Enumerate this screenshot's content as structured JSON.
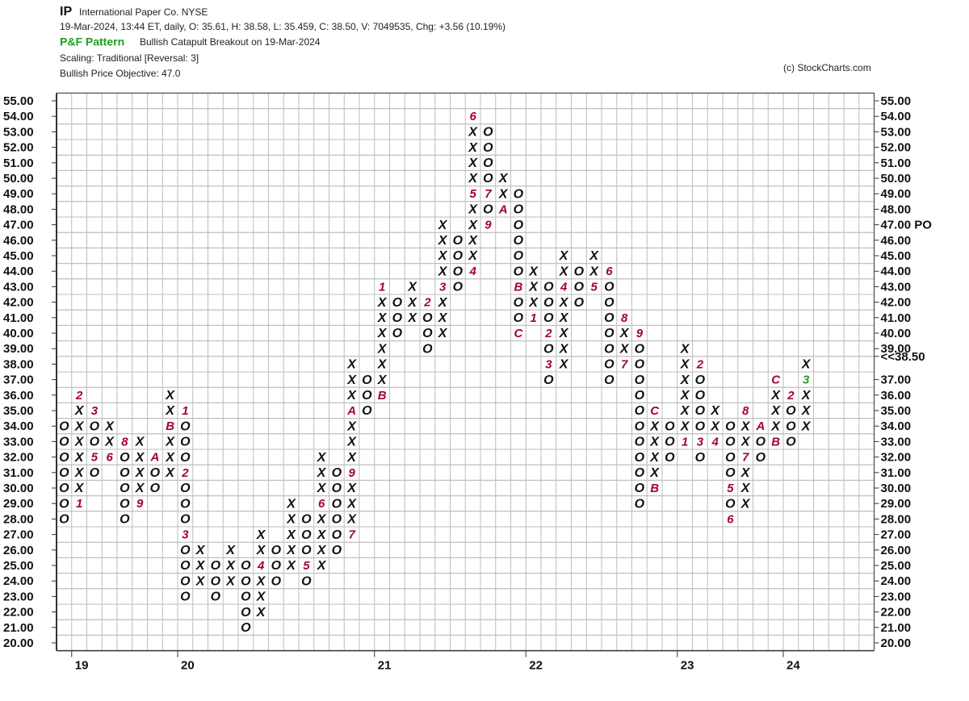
{
  "header": {
    "symbol": "IP",
    "name": "International Paper Co.  NYSE",
    "quote": "19-Mar-2024, 13:44 ET, daily, O: 35.61, H: 38.58, L: 35.459, C: 38.50, V: 7049535, Chg: +3.56 (10.19%)",
    "pattern_label": "P&F Pattern",
    "pattern": "Bullish Catapult Breakout on 19-Mar-2024",
    "scaling": "Scaling: Traditional [Reversal: 3]",
    "objective": "Bullish Price Objective: 47.0",
    "copyright": "(c) StockCharts.com"
  },
  "chart_data": {
    "type": "pnf",
    "ylim": [
      20,
      55
    ],
    "y2lim": [
      20,
      55
    ],
    "grid": true,
    "box_color": "#111111",
    "month_color": "#a3003c",
    "pattern_color": "#1f9f1f",
    "yticks": [
      {
        "value": 55,
        "label": "55.00"
      },
      {
        "value": 54,
        "label": "54.00"
      },
      {
        "value": 53,
        "label": "53.00"
      },
      {
        "value": 52,
        "label": "52.00"
      },
      {
        "value": 51,
        "label": "51.00"
      },
      {
        "value": 50,
        "label": "50.00"
      },
      {
        "value": 49,
        "label": "49.00"
      },
      {
        "value": 48,
        "label": "48.00"
      },
      {
        "value": 47,
        "label": "47.00",
        "color": "#1f9f1f"
      },
      {
        "value": 46,
        "label": "46.00"
      },
      {
        "value": 45,
        "label": "45.00"
      },
      {
        "value": 44,
        "label": "44.00"
      },
      {
        "value": 43,
        "label": "43.00"
      },
      {
        "value": 42,
        "label": "42.00"
      },
      {
        "value": 41,
        "label": "41.00"
      },
      {
        "value": 40,
        "label": "40.00"
      },
      {
        "value": 39,
        "label": "39.00"
      },
      {
        "value": 38,
        "label": "38.00",
        "color": "#c8002d"
      },
      {
        "value": 37,
        "label": "37.00"
      },
      {
        "value": 36,
        "label": "36.00"
      },
      {
        "value": 35,
        "label": "35.00"
      },
      {
        "value": 34,
        "label": "34.00"
      },
      {
        "value": 33,
        "label": "33.00"
      },
      {
        "value": 32,
        "label": "32.00"
      },
      {
        "value": 31,
        "label": "31.00"
      },
      {
        "value": 30,
        "label": "30.00"
      },
      {
        "value": 29,
        "label": "29.00"
      },
      {
        "value": 28,
        "label": "28.00"
      },
      {
        "value": 27,
        "label": "27.00"
      },
      {
        "value": 26,
        "label": "26.00"
      },
      {
        "value": 25,
        "label": "25.00"
      },
      {
        "value": 24,
        "label": "24.00"
      },
      {
        "value": 23,
        "label": "23.00"
      },
      {
        "value": 22,
        "label": "22.00"
      },
      {
        "value": 21,
        "label": "21.00"
      },
      {
        "value": 20,
        "label": "20.00"
      }
    ],
    "y2ticks": [
      {
        "value": 55,
        "label": "55.00"
      },
      {
        "value": 54,
        "label": "54.00"
      },
      {
        "value": 53,
        "label": "53.00"
      },
      {
        "value": 52,
        "label": "52.00"
      },
      {
        "value": 51,
        "label": "51.00"
      },
      {
        "value": 50,
        "label": "50.00"
      },
      {
        "value": 49,
        "label": "49.00"
      },
      {
        "value": 48,
        "label": "48.00"
      },
      {
        "value": 47,
        "label": "47.00 PO",
        "color": "#1f9f1f"
      },
      {
        "value": 46,
        "label": "46.00"
      },
      {
        "value": 45,
        "label": "45.00"
      },
      {
        "value": 44,
        "label": "44.00"
      },
      {
        "value": 43,
        "label": "43.00"
      },
      {
        "value": 42,
        "label": "42.00"
      },
      {
        "value": 41,
        "label": "41.00"
      },
      {
        "value": 40,
        "label": "40.00"
      },
      {
        "value": 39,
        "label": "39.00"
      },
      {
        "value": 38.5,
        "label": "<<38.50",
        "color": "#c8002d"
      },
      {
        "value": 37,
        "label": "37.00"
      },
      {
        "value": 36,
        "label": "36.00"
      },
      {
        "value": 35,
        "label": "35.00"
      },
      {
        "value": 34,
        "label": "34.00"
      },
      {
        "value": 33,
        "label": "33.00"
      },
      {
        "value": 32,
        "label": "32.00"
      },
      {
        "value": 31,
        "label": "31.00"
      },
      {
        "value": 30,
        "label": "30.00"
      },
      {
        "value": 29,
        "label": "29.00"
      },
      {
        "value": 28,
        "label": "28.00"
      },
      {
        "value": 27,
        "label": "27.00"
      },
      {
        "value": 26,
        "label": "26.00"
      },
      {
        "value": 25,
        "label": "25.00"
      },
      {
        "value": 24,
        "label": "24.00"
      },
      {
        "value": 23,
        "label": "23.00"
      },
      {
        "value": 22,
        "label": "22.00"
      },
      {
        "value": 21,
        "label": "21.00"
      },
      {
        "value": 20,
        "label": "20.00"
      }
    ],
    "categories": [
      null,
      "19",
      null,
      null,
      null,
      null,
      null,
      null,
      "20",
      null,
      null,
      null,
      null,
      null,
      null,
      null,
      null,
      null,
      null,
      null,
      null,
      "21",
      null,
      null,
      null,
      null,
      null,
      null,
      null,
      null,
      null,
      "22",
      null,
      null,
      null,
      null,
      null,
      null,
      null,
      null,
      null,
      "23",
      null,
      null,
      null,
      null,
      null,
      null,
      "24",
      null
    ],
    "columns": [
      {
        "type": "O",
        "low": 28,
        "high": 34,
        "months": []
      },
      {
        "type": "X",
        "low": 29,
        "high": 36,
        "months": [
          {
            "box": 29,
            "label": "1"
          },
          {
            "box": 36,
            "label": "2"
          }
        ]
      },
      {
        "type": "O",
        "low": 31,
        "high": 35,
        "months": [
          {
            "box": 35,
            "label": "3"
          },
          {
            "box": 32,
            "label": "5"
          }
        ]
      },
      {
        "type": "X",
        "low": 32,
        "high": 34,
        "months": [
          {
            "box": 32,
            "label": "6"
          }
        ]
      },
      {
        "type": "O",
        "low": 28,
        "high": 33,
        "months": [
          {
            "box": 33,
            "label": "8"
          }
        ]
      },
      {
        "type": "X",
        "low": 29,
        "high": 33,
        "months": [
          {
            "box": 29,
            "label": "9"
          }
        ]
      },
      {
        "type": "O",
        "low": 30,
        "high": 32,
        "months": [
          {
            "box": 32,
            "label": "A"
          }
        ]
      },
      {
        "type": "X",
        "low": 31,
        "high": 36,
        "months": [
          {
            "box": 34,
            "label": "B"
          }
        ]
      },
      {
        "type": "O",
        "low": 23,
        "high": 35,
        "months": [
          {
            "box": 35,
            "label": "1"
          },
          {
            "box": 31,
            "label": "2"
          },
          {
            "box": 27,
            "label": "3"
          }
        ]
      },
      {
        "type": "X",
        "low": 24,
        "high": 26,
        "months": []
      },
      {
        "type": "O",
        "low": 23,
        "high": 25,
        "months": []
      },
      {
        "type": "X",
        "low": 24,
        "high": 26,
        "months": []
      },
      {
        "type": "O",
        "low": 21,
        "high": 25,
        "months": []
      },
      {
        "type": "X",
        "low": 22,
        "high": 27,
        "months": [
          {
            "box": 25,
            "label": "4"
          }
        ]
      },
      {
        "type": "O",
        "low": 24,
        "high": 26,
        "months": []
      },
      {
        "type": "X",
        "low": 25,
        "high": 29,
        "months": []
      },
      {
        "type": "O",
        "low": 24,
        "high": 28,
        "months": [
          {
            "box": 25,
            "label": "5"
          }
        ]
      },
      {
        "type": "X",
        "low": 25,
        "high": 32,
        "months": [
          {
            "box": 29,
            "label": "6"
          }
        ]
      },
      {
        "type": "O",
        "low": 26,
        "high": 31,
        "months": []
      },
      {
        "type": "X",
        "low": 27,
        "high": 38,
        "months": [
          {
            "box": 27,
            "label": "7"
          },
          {
            "box": 31,
            "label": "9"
          },
          {
            "box": 35,
            "label": "A"
          }
        ]
      },
      {
        "type": "O",
        "low": 35,
        "high": 37,
        "months": []
      },
      {
        "type": "X",
        "low": 36,
        "high": 43,
        "months": [
          {
            "box": 36,
            "label": "B"
          },
          {
            "box": 43,
            "label": "1"
          }
        ]
      },
      {
        "type": "O",
        "low": 40,
        "high": 42,
        "months": []
      },
      {
        "type": "X",
        "low": 41,
        "high": 43,
        "months": []
      },
      {
        "type": "O",
        "low": 39,
        "high": 42,
        "months": [
          {
            "box": 42,
            "label": "2"
          }
        ]
      },
      {
        "type": "X",
        "low": 40,
        "high": 47,
        "months": [
          {
            "box": 43,
            "label": "3"
          }
        ]
      },
      {
        "type": "O",
        "low": 43,
        "high": 46,
        "months": []
      },
      {
        "type": "X",
        "low": 44,
        "high": 54,
        "months": [
          {
            "box": 44,
            "label": "4"
          },
          {
            "box": 49,
            "label": "5"
          },
          {
            "box": 54,
            "label": "6"
          }
        ]
      },
      {
        "type": "O",
        "low": 47,
        "high": 53,
        "months": [
          {
            "box": 49,
            "label": "7"
          },
          {
            "box": 47,
            "label": "9"
          }
        ]
      },
      {
        "type": "X",
        "low": 48,
        "high": 50,
        "months": [
          {
            "box": 48,
            "label": "A"
          }
        ]
      },
      {
        "type": "O",
        "low": 40,
        "high": 49,
        "months": [
          {
            "box": 43,
            "label": "B"
          },
          {
            "box": 40,
            "label": "C"
          }
        ]
      },
      {
        "type": "X",
        "low": 41,
        "high": 44,
        "months": [
          {
            "box": 41,
            "label": "1"
          }
        ]
      },
      {
        "type": "O",
        "low": 37,
        "high": 43,
        "months": [
          {
            "box": 40,
            "label": "2"
          },
          {
            "box": 38,
            "label": "3"
          }
        ]
      },
      {
        "type": "X",
        "low": 38,
        "high": 45,
        "months": [
          {
            "box": 43,
            "label": "4"
          }
        ]
      },
      {
        "type": "O",
        "low": 42,
        "high": 44,
        "months": []
      },
      {
        "type": "X",
        "low": 43,
        "high": 45,
        "months": [
          {
            "box": 43,
            "label": "5"
          }
        ]
      },
      {
        "type": "O",
        "low": 37,
        "high": 44,
        "months": [
          {
            "box": 44,
            "label": "6"
          }
        ]
      },
      {
        "type": "X",
        "low": 38,
        "high": 41,
        "months": [
          {
            "box": 38,
            "label": "7"
          },
          {
            "box": 41,
            "label": "8"
          }
        ]
      },
      {
        "type": "O",
        "low": 29,
        "high": 40,
        "months": [
          {
            "box": 40,
            "label": "9"
          }
        ]
      },
      {
        "type": "X",
        "low": 30,
        "high": 35,
        "months": [
          {
            "box": 30,
            "label": "B"
          },
          {
            "box": 35,
            "label": "C"
          }
        ]
      },
      {
        "type": "O",
        "low": 32,
        "high": 34,
        "months": []
      },
      {
        "type": "X",
        "low": 33,
        "high": 39,
        "months": [
          {
            "box": 33,
            "label": "1"
          }
        ]
      },
      {
        "type": "O",
        "low": 32,
        "high": 38,
        "months": [
          {
            "box": 38,
            "label": "2"
          },
          {
            "box": 33,
            "label": "3"
          }
        ]
      },
      {
        "type": "X",
        "low": 33,
        "high": 35,
        "months": [
          {
            "box": 33,
            "label": "4"
          }
        ]
      },
      {
        "type": "O",
        "low": 28,
        "high": 34,
        "months": [
          {
            "box": 30,
            "label": "5"
          },
          {
            "box": 28,
            "label": "6"
          }
        ]
      },
      {
        "type": "X",
        "low": 29,
        "high": 35,
        "months": [
          {
            "box": 32,
            "label": "7"
          },
          {
            "box": 35,
            "label": "8"
          }
        ]
      },
      {
        "type": "O",
        "low": 32,
        "high": 34,
        "months": [
          {
            "box": 34,
            "label": "A"
          }
        ]
      },
      {
        "type": "X",
        "low": 33,
        "high": 37,
        "months": [
          {
            "box": 33,
            "label": "B"
          },
          {
            "box": 37,
            "label": "C"
          }
        ]
      },
      {
        "type": "O",
        "low": 33,
        "high": 36,
        "months": [
          {
            "box": 36,
            "label": "2"
          }
        ]
      },
      {
        "type": "X",
        "low": 34,
        "high": 38,
        "months": [
          {
            "box": 37,
            "label": "3"
          }
        ],
        "highlight_from": 37,
        "highlight_color": "#1f9f1f"
      }
    ]
  }
}
